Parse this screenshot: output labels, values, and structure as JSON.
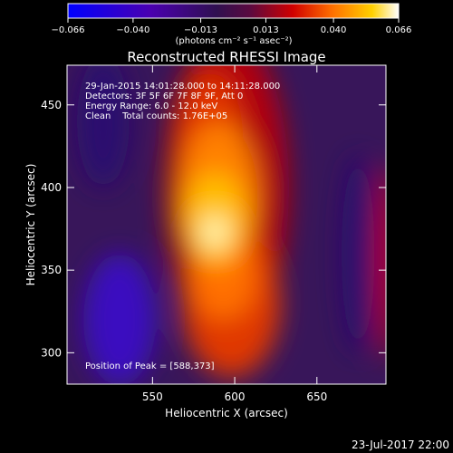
{
  "chart_data": {
    "type": "heatmap",
    "title": "Reconstructed RHESSI Image",
    "xlabel": "Heliocentric X (arcsec)",
    "ylabel": "Heliocentric Y (arcsec)",
    "xlim": [
      498,
      692
    ],
    "ylim": [
      281,
      474
    ],
    "x_ticks": [
      550,
      600,
      650
    ],
    "x_tick_labels": [
      "550",
      "600",
      "650"
    ],
    "y_ticks": [
      300,
      350,
      400,
      450
    ],
    "y_tick_labels": [
      "300",
      "350",
      "400",
      "450"
    ],
    "colorbar": {
      "range": [
        -0.066,
        0.066
      ],
      "ticks": [
        -0.066,
        -0.04,
        -0.013,
        0.013,
        0.04,
        0.066
      ],
      "tick_labels": [
        "−0.066",
        "−0.040",
        "−0.013",
        "0.013",
        "0.040",
        "0.066"
      ],
      "unit_label": "(photons cm⁻² s⁻¹ asec⁻²)"
    },
    "annotations": [
      "29-Jan-2015 14:01:28.000 to 14:11:28.000",
      "Detectors: 3F 5F 6F 7F 8F 9F, Att 0",
      "Energy Range: 6.0 - 12.0 keV",
      "Clean    Total counts: 1.76E+05"
    ],
    "peak": {
      "x": 588,
      "y": 373,
      "label": "Position of Peak = [588,373]"
    },
    "timestamp": "23-Jul-2017 22:00",
    "colormap": [
      "#0000ff",
      "#5000a0",
      "#301050",
      "#3a1a60",
      "#c00000",
      "#ff7000",
      "#ffd000",
      "#ffffff"
    ],
    "grid": false
  }
}
